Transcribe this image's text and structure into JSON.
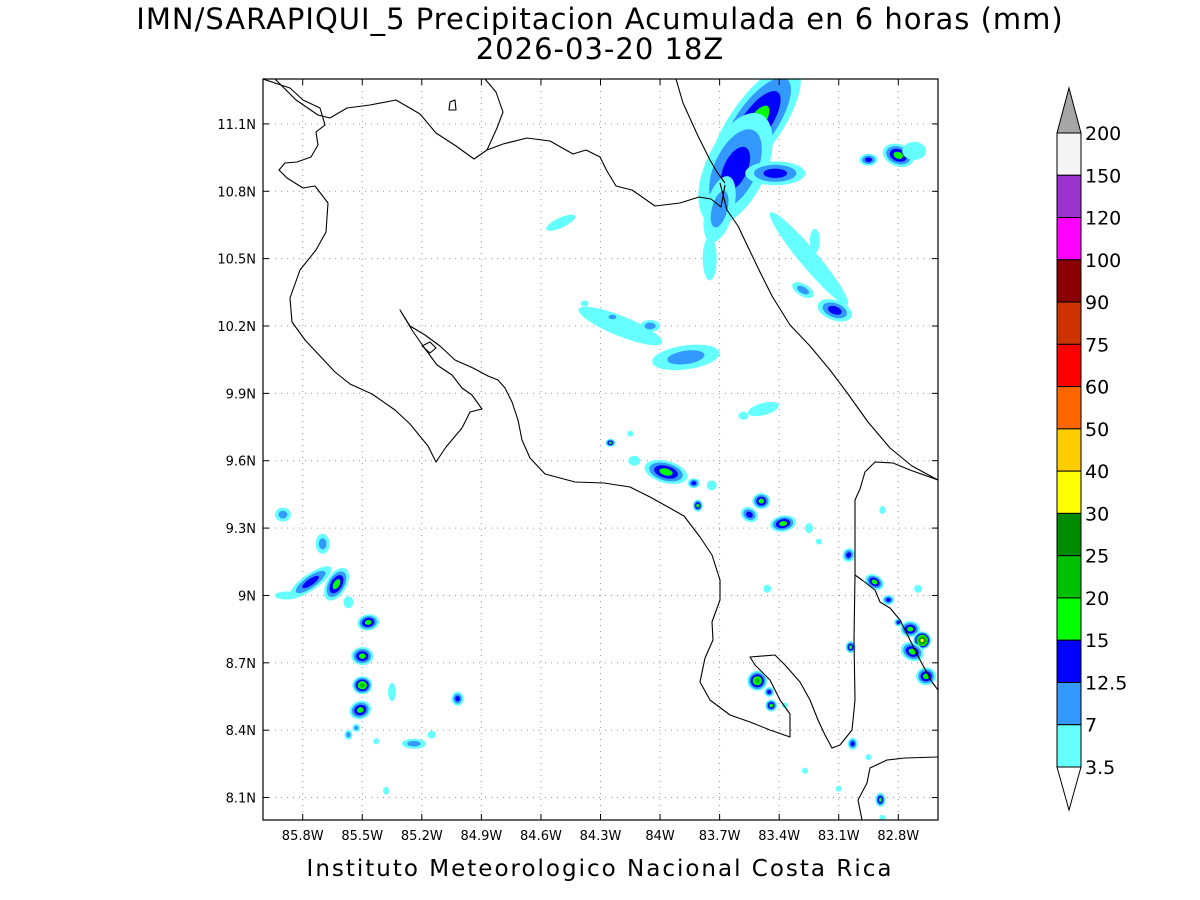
{
  "header": {
    "title": "IMN/SARAPIQUI_5 Precipitacion Acumulada en 6 horas (mm)",
    "subtitle": "2026-03-20 18Z"
  },
  "footer": {
    "credit": "Instituto Meteorologico Nacional Costa Rica"
  },
  "map": {
    "lon_range": [
      -86.0,
      -82.6
    ],
    "lat_range": [
      8.0,
      11.3
    ],
    "x_ticks": [
      "85.8W",
      "85.5W",
      "85.2W",
      "84.9W",
      "84.6W",
      "84.3W",
      "84W",
      "83.7W",
      "83.4W",
      "83.1W",
      "82.8W"
    ],
    "y_ticks": [
      "11.1N",
      "10.8N",
      "10.5N",
      "10.2N",
      "9.9N",
      "9.6N",
      "9.3N",
      "9N",
      "8.7N",
      "8.4N",
      "8.1N"
    ],
    "grid": true
  },
  "legend": {
    "levels": [
      "200",
      "150",
      "120",
      "100",
      "90",
      "75",
      "60",
      "50",
      "40",
      "30",
      "25",
      "20",
      "15",
      "12.5",
      "7",
      "3.5"
    ],
    "colors": [
      "#a6a6a6",
      "#f5f5f5",
      "#9a32cd",
      "#ff00ff",
      "#8b0000",
      "#cd3300",
      "#ff0000",
      "#ff6600",
      "#ffcc00",
      "#ffff00",
      "#008b00",
      "#00c000",
      "#00ff00",
      "#0000ff",
      "#3399ff",
      "#66ffff",
      "#ffffff"
    ]
  },
  "rain_cells": [
    {
      "lon": -83.52,
      "lat": 11.1,
      "rx": 70,
      "ry": 26,
      "rot": -55,
      "lvl": 4
    },
    {
      "lon": -83.62,
      "lat": 10.9,
      "rx": 60,
      "ry": 30,
      "rot": -65,
      "lvl": 3
    },
    {
      "lon": -83.42,
      "lat": 10.88,
      "rx": 30,
      "ry": 12,
      "rot": 0,
      "lvl": 3
    },
    {
      "lon": -83.7,
      "lat": 10.72,
      "rx": 34,
      "ry": 14,
      "rot": -75,
      "lvl": 2
    },
    {
      "lon": -83.25,
      "lat": 10.5,
      "rx": 60,
      "ry": 9,
      "rot": 50,
      "lvl": 1
    },
    {
      "lon": -83.12,
      "lat": 10.27,
      "rx": 18,
      "ry": 10,
      "rot": 20,
      "lvl": 3
    },
    {
      "lon": -83.28,
      "lat": 10.36,
      "rx": 12,
      "ry": 6,
      "rot": 30,
      "lvl": 2
    },
    {
      "lon": -83.22,
      "lat": 10.58,
      "rx": 5,
      "ry": 12,
      "rot": 0,
      "lvl": 1
    },
    {
      "lon": -83.75,
      "lat": 10.5,
      "rx": 7,
      "ry": 22,
      "rot": 0,
      "lvl": 1
    },
    {
      "lon": -82.95,
      "lat": 10.94,
      "rx": 9,
      "ry": 6,
      "rot": 0,
      "lvl": 3
    },
    {
      "lon": -82.8,
      "lat": 10.96,
      "rx": 16,
      "ry": 11,
      "rot": 20,
      "lvl": 4
    },
    {
      "lon": -82.72,
      "lat": 10.98,
      "rx": 12,
      "ry": 9,
      "rot": 0,
      "lvl": 1
    },
    {
      "lon": -84.5,
      "lat": 10.66,
      "rx": 16,
      "ry": 5,
      "rot": -25,
      "lvl": 1
    },
    {
      "lon": -84.2,
      "lat": 10.2,
      "rx": 45,
      "ry": 10,
      "rot": 22,
      "lvl": 1
    },
    {
      "lon": -84.05,
      "lat": 10.2,
      "rx": 10,
      "ry": 6,
      "rot": 0,
      "lvl": 2
    },
    {
      "lon": -84.24,
      "lat": 10.24,
      "rx": 7,
      "ry": 4,
      "rot": 0,
      "lvl": 2
    },
    {
      "lon": -83.87,
      "lat": 10.06,
      "rx": 34,
      "ry": 12,
      "rot": -8,
      "lvl": 2
    },
    {
      "lon": -84.38,
      "lat": 10.3,
      "rx": 4,
      "ry": 3,
      "rot": 0,
      "lvl": 1
    },
    {
      "lon": -83.48,
      "lat": 9.83,
      "rx": 16,
      "ry": 6,
      "rot": -15,
      "lvl": 1
    },
    {
      "lon": -83.58,
      "lat": 9.8,
      "rx": 5,
      "ry": 4,
      "rot": 0,
      "lvl": 1
    },
    {
      "lon": -84.25,
      "lat": 9.68,
      "rx": 5,
      "ry": 4,
      "rot": 0,
      "lvl": 4
    },
    {
      "lon": -84.13,
      "lat": 9.6,
      "rx": 6,
      "ry": 5,
      "rot": 0,
      "lvl": 1
    },
    {
      "lon": -83.97,
      "lat": 9.55,
      "rx": 22,
      "ry": 11,
      "rot": 15,
      "lvl": 4
    },
    {
      "lon": -83.83,
      "lat": 9.5,
      "rx": 6,
      "ry": 5,
      "rot": 0,
      "lvl": 3
    },
    {
      "lon": -83.74,
      "lat": 9.49,
      "rx": 5,
      "ry": 5,
      "rot": 0,
      "lvl": 1
    },
    {
      "lon": -83.81,
      "lat": 9.4,
      "rx": 5,
      "ry": 6,
      "rot": 0,
      "lvl": 4
    },
    {
      "lon": -83.49,
      "lat": 9.42,
      "rx": 9,
      "ry": 8,
      "rot": 0,
      "lvl": 4
    },
    {
      "lon": -83.55,
      "lat": 9.36,
      "rx": 9,
      "ry": 7,
      "rot": 30,
      "lvl": 3
    },
    {
      "lon": -83.38,
      "lat": 9.32,
      "rx": 13,
      "ry": 8,
      "rot": -10,
      "lvl": 4
    },
    {
      "lon": -83.25,
      "lat": 9.3,
      "rx": 4,
      "ry": 5,
      "rot": 0,
      "lvl": 1
    },
    {
      "lon": -83.2,
      "lat": 9.24,
      "rx": 3,
      "ry": 3,
      "rot": 0,
      "lvl": 1
    },
    {
      "lon": -83.05,
      "lat": 9.18,
      "rx": 6,
      "ry": 7,
      "rot": 20,
      "lvl": 3
    },
    {
      "lon": -82.92,
      "lat": 9.06,
      "rx": 10,
      "ry": 7,
      "rot": 30,
      "lvl": 4
    },
    {
      "lon": -82.85,
      "lat": 8.98,
      "rx": 6,
      "ry": 5,
      "rot": 0,
      "lvl": 3
    },
    {
      "lon": -82.7,
      "lat": 9.03,
      "rx": 4,
      "ry": 4,
      "rot": 0,
      "lvl": 1
    },
    {
      "lon": -82.74,
      "lat": 8.85,
      "rx": 10,
      "ry": 8,
      "rot": 0,
      "lvl": 4
    },
    {
      "lon": -82.68,
      "lat": 8.8,
      "rx": 9,
      "ry": 9,
      "rot": 0,
      "lvl": 7
    },
    {
      "lon": -82.73,
      "lat": 8.75,
      "rx": 12,
      "ry": 9,
      "rot": 25,
      "lvl": 4
    },
    {
      "lon": -82.66,
      "lat": 8.64,
      "rx": 10,
      "ry": 9,
      "rot": 0,
      "lvl": 4
    },
    {
      "lon": -82.8,
      "lat": 8.88,
      "rx": 4,
      "ry": 4,
      "rot": 0,
      "lvl": 3
    },
    {
      "lon": -82.88,
      "lat": 9.38,
      "rx": 3,
      "ry": 4,
      "rot": 0,
      "lvl": 1
    },
    {
      "lon": -83.04,
      "lat": 8.77,
      "rx": 5,
      "ry": 6,
      "rot": 0,
      "lvl": 4
    },
    {
      "lon": -83.51,
      "lat": 8.62,
      "rx": 10,
      "ry": 10,
      "rot": 0,
      "lvl": 5
    },
    {
      "lon": -83.45,
      "lat": 8.57,
      "rx": 5,
      "ry": 5,
      "rot": 0,
      "lvl": 3
    },
    {
      "lon": -83.44,
      "lat": 8.51,
      "rx": 6,
      "ry": 6,
      "rot": 0,
      "lvl": 4
    },
    {
      "lon": -83.37,
      "lat": 8.51,
      "rx": 3,
      "ry": 3,
      "rot": 0,
      "lvl": 1
    },
    {
      "lon": -83.46,
      "lat": 9.03,
      "rx": 4,
      "ry": 4,
      "rot": 0,
      "lvl": 1
    },
    {
      "lon": -83.03,
      "lat": 8.34,
      "rx": 5,
      "ry": 6,
      "rot": 0,
      "lvl": 3
    },
    {
      "lon": -82.95,
      "lat": 8.28,
      "rx": 3,
      "ry": 3,
      "rot": 0,
      "lvl": 1
    },
    {
      "lon": -82.89,
      "lat": 8.09,
      "rx": 5,
      "ry": 7,
      "rot": 0,
      "lvl": 4
    },
    {
      "lon": -82.88,
      "lat": 8.01,
      "rx": 3,
      "ry": 3,
      "rot": 0,
      "lvl": 1
    },
    {
      "lon": -83.27,
      "lat": 8.22,
      "rx": 3,
      "ry": 3,
      "rot": 0,
      "lvl": 1
    },
    {
      "lon": -83.1,
      "lat": 8.14,
      "rx": 3,
      "ry": 3,
      "rot": 0,
      "lvl": 1
    },
    {
      "lon": -85.9,
      "lat": 9.36,
      "rx": 8,
      "ry": 7,
      "rot": 0,
      "lvl": 2
    },
    {
      "lon": -85.7,
      "lat": 9.23,
      "rx": 7,
      "ry": 10,
      "rot": 0,
      "lvl": 2
    },
    {
      "lon": -85.76,
      "lat": 9.06,
      "rx": 25,
      "ry": 8,
      "rot": -35,
      "lvl": 3
    },
    {
      "lon": -85.63,
      "lat": 9.05,
      "rx": 10,
      "ry": 18,
      "rot": 30,
      "lvl": 4
    },
    {
      "lon": -85.88,
      "lat": 9.0,
      "rx": 12,
      "ry": 4,
      "rot": 0,
      "lvl": 1
    },
    {
      "lon": -85.57,
      "lat": 8.97,
      "rx": 5,
      "ry": 6,
      "rot": 0,
      "lvl": 1
    },
    {
      "lon": -85.47,
      "lat": 8.88,
      "rx": 11,
      "ry": 8,
      "rot": -10,
      "lvl": 4
    },
    {
      "lon": -85.5,
      "lat": 8.73,
      "rx": 11,
      "ry": 9,
      "rot": 0,
      "lvl": 4
    },
    {
      "lon": -85.5,
      "lat": 8.6,
      "rx": 10,
      "ry": 9,
      "rot": 0,
      "lvl": 5
    },
    {
      "lon": -85.51,
      "lat": 8.49,
      "rx": 11,
      "ry": 9,
      "rot": -20,
      "lvl": 4
    },
    {
      "lon": -85.35,
      "lat": 8.57,
      "rx": 4,
      "ry": 9,
      "rot": 0,
      "lvl": 1
    },
    {
      "lon": -85.02,
      "lat": 8.54,
      "rx": 6,
      "ry": 7,
      "rot": 0,
      "lvl": 3
    },
    {
      "lon": -85.24,
      "lat": 8.34,
      "rx": 12,
      "ry": 5,
      "rot": 0,
      "lvl": 2
    },
    {
      "lon": -85.15,
      "lat": 8.38,
      "rx": 4,
      "ry": 4,
      "rot": 0,
      "lvl": 1
    },
    {
      "lon": -85.57,
      "lat": 8.38,
      "rx": 4,
      "ry": 5,
      "rot": 0,
      "lvl": 2
    },
    {
      "lon": -85.53,
      "lat": 8.41,
      "rx": 4,
      "ry": 4,
      "rot": 0,
      "lvl": 2
    },
    {
      "lon": -85.43,
      "lat": 8.35,
      "rx": 3,
      "ry": 3,
      "rot": 0,
      "lvl": 1
    },
    {
      "lon": -85.38,
      "lat": 8.13,
      "rx": 3,
      "ry": 4,
      "rot": 0,
      "lvl": 1
    },
    {
      "lon": -84.15,
      "lat": 9.72,
      "rx": 3,
      "ry": 3,
      "rot": 0,
      "lvl": 1
    }
  ]
}
